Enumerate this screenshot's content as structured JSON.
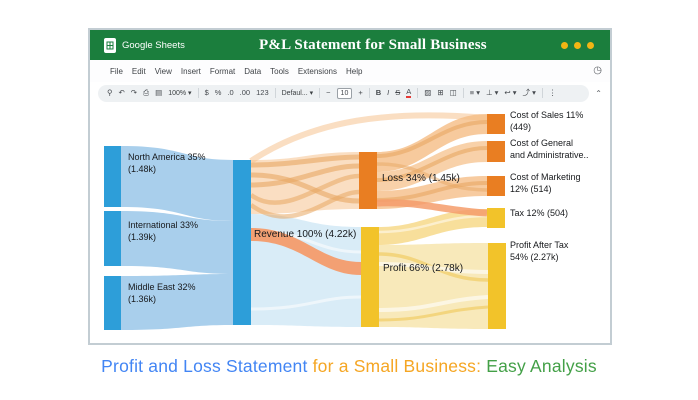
{
  "window": {
    "brand": "Google Sheets",
    "title": "P&L Statement for Small Business",
    "menu_items": [
      "File",
      "Edit",
      "View",
      "Insert",
      "Format",
      "Data",
      "Tools",
      "Extensions",
      "Help"
    ],
    "history_icon": "◷",
    "toolbar": {
      "collapse_icon": "⌃",
      "icons": [
        {
          "name": "search-icon",
          "glyph": "⚲"
        },
        {
          "name": "undo-icon",
          "glyph": "↶"
        },
        {
          "name": "redo-icon",
          "glyph": "↷"
        },
        {
          "name": "print-icon",
          "glyph": "⎙"
        },
        {
          "name": "paint-format-icon",
          "glyph": "▤"
        },
        {
          "name": "zoom-select",
          "glyph": "100% ▾",
          "style": "text"
        },
        {
          "sep": true,
          "name": "separator"
        },
        {
          "name": "currency-format-icon",
          "glyph": "$"
        },
        {
          "name": "percent-format-icon",
          "glyph": "%"
        },
        {
          "name": "decrease-decimals-icon",
          "glyph": ".0"
        },
        {
          "name": "increase-decimals-icon",
          "glyph": ".00"
        },
        {
          "name": "number-format-icon",
          "glyph": "123"
        },
        {
          "sep": true,
          "name": "separator"
        },
        {
          "name": "font-select",
          "glyph": "Defaul... ▾",
          "style": "text"
        },
        {
          "sep": true,
          "name": "separator"
        },
        {
          "name": "decrease-font-size-icon",
          "glyph": "−"
        },
        {
          "name": "font-size-input",
          "glyph": "10",
          "style": "pill"
        },
        {
          "name": "increase-font-size-icon",
          "glyph": "+"
        },
        {
          "sep": true,
          "name": "separator"
        },
        {
          "name": "bold-icon",
          "glyph": "B",
          "style": "bold"
        },
        {
          "name": "italic-icon",
          "glyph": "I",
          "style": "italic"
        },
        {
          "name": "strikethrough-icon",
          "glyph": "S",
          "style": "strike"
        },
        {
          "name": "text-color-icon",
          "glyph": "A",
          "style": "ucolor"
        },
        {
          "sep": true,
          "name": "separator"
        },
        {
          "name": "fill-color-icon",
          "glyph": "▨"
        },
        {
          "name": "borders-icon",
          "glyph": "⊞"
        },
        {
          "name": "merge-cells-icon",
          "glyph": "◫"
        },
        {
          "sep": true,
          "name": "separator"
        },
        {
          "name": "horizontal-align-icon",
          "glyph": "≡ ▾"
        },
        {
          "name": "vertical-align-icon",
          "glyph": "⊥ ▾"
        },
        {
          "name": "text-wrap-icon",
          "glyph": "↩ ▾"
        },
        {
          "name": "text-rotation-icon",
          "glyph": "⤴ ▾"
        },
        {
          "sep": true,
          "name": "separator"
        },
        {
          "name": "more-icon",
          "glyph": "⋮"
        }
      ]
    }
  },
  "chart_data": {
    "type": "sankey",
    "title": "P&L Statement for Small Business",
    "nodes": [
      {
        "id": "north-america",
        "label": "North America 35%\n(1.48k)",
        "percent": 35,
        "value": 1480
      },
      {
        "id": "international",
        "label": "International 33%\n(1.39k)",
        "percent": 33,
        "value": 1390
      },
      {
        "id": "middle-east",
        "label": "Middle East 32%\n(1.36k)",
        "percent": 32,
        "value": 1360
      },
      {
        "id": "revenue",
        "label": "Revenue 100% (4.22k)",
        "percent": 100,
        "value": 4220
      },
      {
        "id": "loss",
        "label": "Loss 34% (1.45k)",
        "percent": 34,
        "value": 1450
      },
      {
        "id": "profit",
        "label": "Profit 66% (2.78k)",
        "percent": 66,
        "value": 2780
      },
      {
        "id": "cost-of-sales",
        "label": "Cost of Sales 11%\n(449)",
        "percent": 11,
        "value": 449
      },
      {
        "id": "cost-of-general-admin",
        "label": "Cost of General\nand Administrative.."
      },
      {
        "id": "cost-of-marketing",
        "label": "Cost of Marketing\n12% (514)",
        "percent": 12,
        "value": 514
      },
      {
        "id": "tax",
        "label": "Tax 12% (504)",
        "percent": 12,
        "value": 504
      },
      {
        "id": "profit-after-tax",
        "label": "Profit After Tax\n54% (2.27k)",
        "percent": 54,
        "value": 2270
      }
    ],
    "links": [
      {
        "source": "north-america",
        "target": "revenue",
        "value": 1480
      },
      {
        "source": "international",
        "target": "revenue",
        "value": 1390
      },
      {
        "source": "middle-east",
        "target": "revenue",
        "value": 1360
      },
      {
        "source": "revenue",
        "target": "loss",
        "value": 1450
      },
      {
        "source": "revenue",
        "target": "profit",
        "value": 2780
      },
      {
        "source": "loss",
        "target": "cost-of-sales",
        "value": 449
      },
      {
        "source": "loss",
        "target": "cost-of-general-admin",
        "value": 487
      },
      {
        "source": "loss",
        "target": "cost-of-marketing",
        "value": 514
      },
      {
        "source": "profit",
        "target": "tax",
        "value": 504
      },
      {
        "source": "profit",
        "target": "profit-after-tax",
        "value": 2270
      }
    ]
  },
  "caption": {
    "part1": "Profit and Loss Statement",
    "part2": " for a Small Business:",
    "part3": " Easy Analysis"
  },
  "colors": {
    "header_green": "#1b7e3d",
    "dot_yellow": "#f1b514",
    "node_blue": "#2d9ed9",
    "flow_blue": "#a9cfec",
    "flow_pale_blue": "#d9ecf7",
    "node_orange": "#e97e22",
    "flow_orange": "#f5bd85",
    "flow_orange_deep": "#e7a763",
    "flow_salmon": "#f49c6b",
    "node_gold": "#f2c32a",
    "flow_amber": "#f7d98a",
    "flow_pale_gold": "#f8e9ba",
    "caption_blue": "#4285f4",
    "caption_amber": "#f5a623",
    "caption_green": "#43a047"
  }
}
